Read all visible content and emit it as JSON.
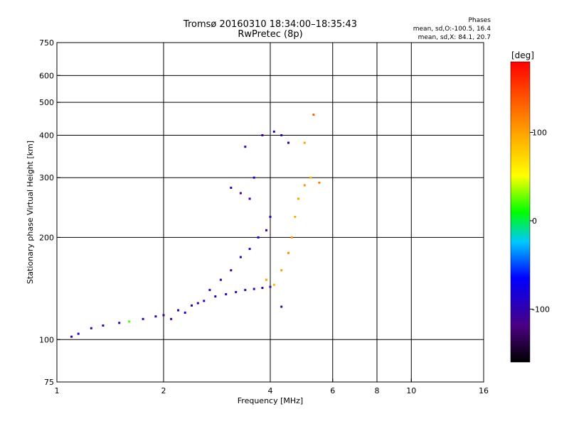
{
  "header": {
    "title": "Tromsø 20160310 18:34:00–18:35:43",
    "subtitle": "RwPretec (8p)"
  },
  "phase_stats": {
    "heading": "Phases",
    "line_o": "mean, sd,O:-100.5, 16.4",
    "line_x": "mean, sd,X:  84.1, 20.7"
  },
  "colorbar": {
    "unit_label": "[deg]",
    "ticks": [
      100,
      0,
      -100
    ],
    "range": [
      -160,
      180
    ]
  },
  "chart_data": {
    "type": "scatter",
    "xlabel": "Frequency [MHz]",
    "ylabel": "Stationary phase Virtual Height [km]",
    "xscale": "log",
    "yscale": "log",
    "xlim": [
      1,
      16
    ],
    "ylim": [
      75,
      750
    ],
    "x_ticks": [
      1,
      2,
      4,
      6,
      8,
      10,
      16
    ],
    "x_tick_labels": [
      "1",
      "2",
      "4",
      "6",
      "8",
      "10",
      "16"
    ],
    "y_ticks": [
      75,
      100,
      200,
      300,
      400,
      500,
      600,
      750
    ],
    "y_tick_labels": [
      "75",
      "100",
      "200",
      "300",
      "400",
      "500",
      "600",
      "750"
    ],
    "x_gridlines": [
      2,
      4,
      6,
      8,
      10
    ],
    "y_gridlines": [
      100,
      200,
      300,
      400,
      500,
      600
    ],
    "grid": true,
    "color_encoding": "phase (deg)",
    "series": [
      {
        "values": [
          [
            1.1,
            102,
            -100
          ],
          [
            1.15,
            104,
            -95
          ],
          [
            1.25,
            108,
            -110
          ],
          [
            1.35,
            110,
            -105
          ],
          [
            1.5,
            112,
            -100
          ],
          [
            1.6,
            113,
            20
          ],
          [
            1.75,
            115,
            -95
          ],
          [
            1.9,
            117,
            -100
          ],
          [
            2.0,
            118,
            -110
          ],
          [
            2.2,
            122,
            -90
          ],
          [
            2.4,
            126,
            -100
          ],
          [
            2.6,
            130,
            -95
          ],
          [
            2.8,
            134,
            -100
          ],
          [
            3.0,
            136,
            -85
          ],
          [
            3.2,
            138,
            -95
          ],
          [
            3.4,
            140,
            -100
          ],
          [
            3.6,
            141,
            -90
          ],
          [
            3.8,
            142,
            -105
          ],
          [
            4.0,
            143,
            -110
          ],
          [
            4.3,
            125,
            -95
          ]
        ]
      },
      {
        "values": [
          [
            2.1,
            115,
            -110
          ],
          [
            2.3,
            120,
            -95
          ],
          [
            2.5,
            128,
            -100
          ],
          [
            2.7,
            140,
            -95
          ],
          [
            2.9,
            150,
            -100
          ],
          [
            3.1,
            160,
            -110
          ],
          [
            3.3,
            175,
            -95
          ],
          [
            3.5,
            185,
            -100
          ],
          [
            3.7,
            200,
            -90
          ],
          [
            3.9,
            210,
            -105
          ],
          [
            4.0,
            230,
            -100
          ],
          [
            3.3,
            270,
            -115
          ],
          [
            3.1,
            280,
            -95
          ],
          [
            3.5,
            260,
            -105
          ],
          [
            3.6,
            300,
            -90
          ],
          [
            3.4,
            370,
            -100
          ],
          [
            3.8,
            400,
            -110
          ],
          [
            4.1,
            410,
            -100
          ],
          [
            4.3,
            400,
            -95
          ],
          [
            4.5,
            380,
            -105
          ]
        ]
      },
      {
        "values": [
          [
            3.9,
            150,
            100
          ],
          [
            4.1,
            145,
            90
          ],
          [
            4.3,
            160,
            100
          ],
          [
            4.5,
            180,
            110
          ],
          [
            4.6,
            200,
            105
          ],
          [
            4.7,
            230,
            95
          ],
          [
            4.8,
            260,
            100
          ],
          [
            5.0,
            285,
            110
          ],
          [
            5.2,
            300,
            90
          ],
          [
            5.5,
            290,
            120
          ],
          [
            5.0,
            380,
            100
          ],
          [
            5.3,
            460,
            130
          ]
        ]
      }
    ]
  }
}
